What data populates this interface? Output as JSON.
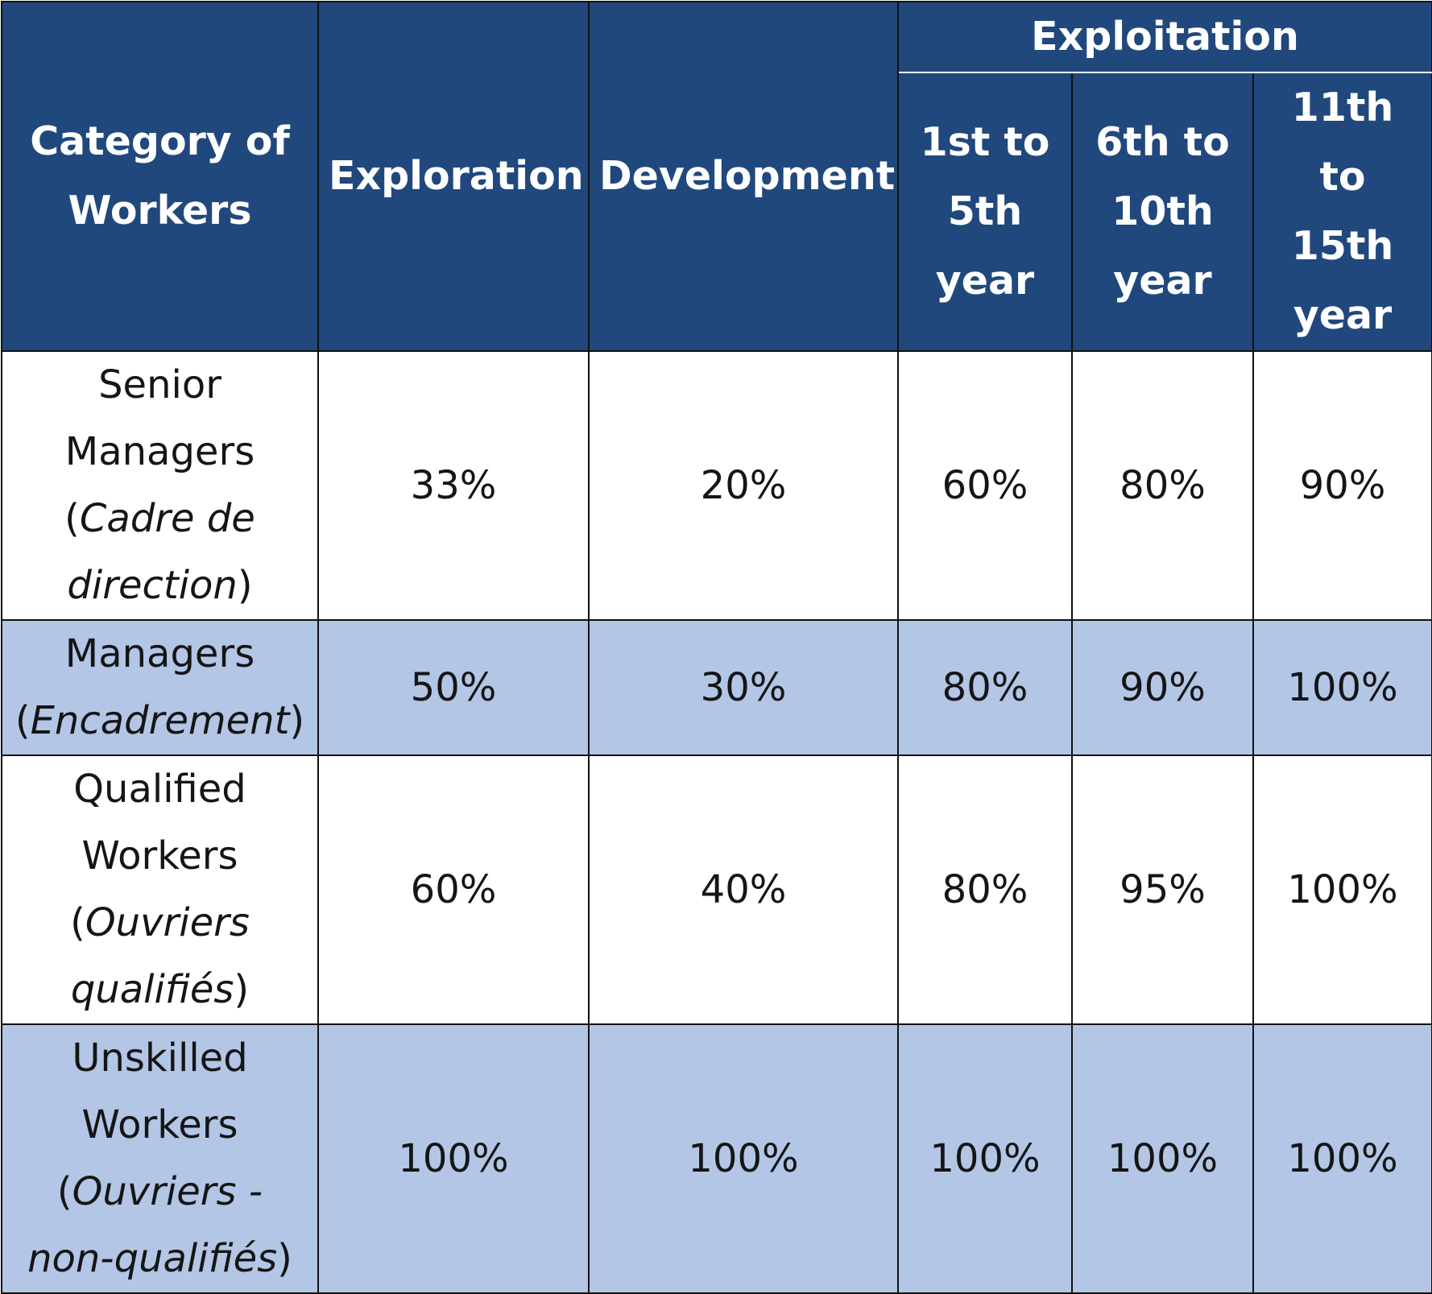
{
  "table": {
    "header": {
      "category": "Category of Workers",
      "exploration": "Exploration",
      "development": "Development",
      "exploitation": "Exploitation",
      "exploitation_sub": [
        "1st to 5th year",
        "6th to 10th year",
        "11th to 15th year"
      ]
    },
    "rows": [
      {
        "category": "Senior Managers",
        "category_fr": "Cadre de direction",
        "values": [
          "33%",
          "20%",
          "60%",
          "80%",
          "90%"
        ]
      },
      {
        "category": "Managers",
        "category_fr": "Encadrement",
        "values": [
          "50%",
          "30%",
          "80%",
          "90%",
          "100%"
        ]
      },
      {
        "category": "Qualified Workers",
        "category_fr": "Ouvriers qualifiés",
        "values": [
          "60%",
          "40%",
          "80%",
          "95%",
          "100%"
        ]
      },
      {
        "category": "Unskilled Workers",
        "category_fr": "Ouvriers - non-qualifiés",
        "values": [
          "100%",
          "100%",
          "100%",
          "100%",
          "100%"
        ]
      }
    ],
    "colors": {
      "header_background": "#20487d",
      "header_text": "#ffffff",
      "shaded_row_background": "#b3c6e6",
      "border": "#111111"
    }
  }
}
